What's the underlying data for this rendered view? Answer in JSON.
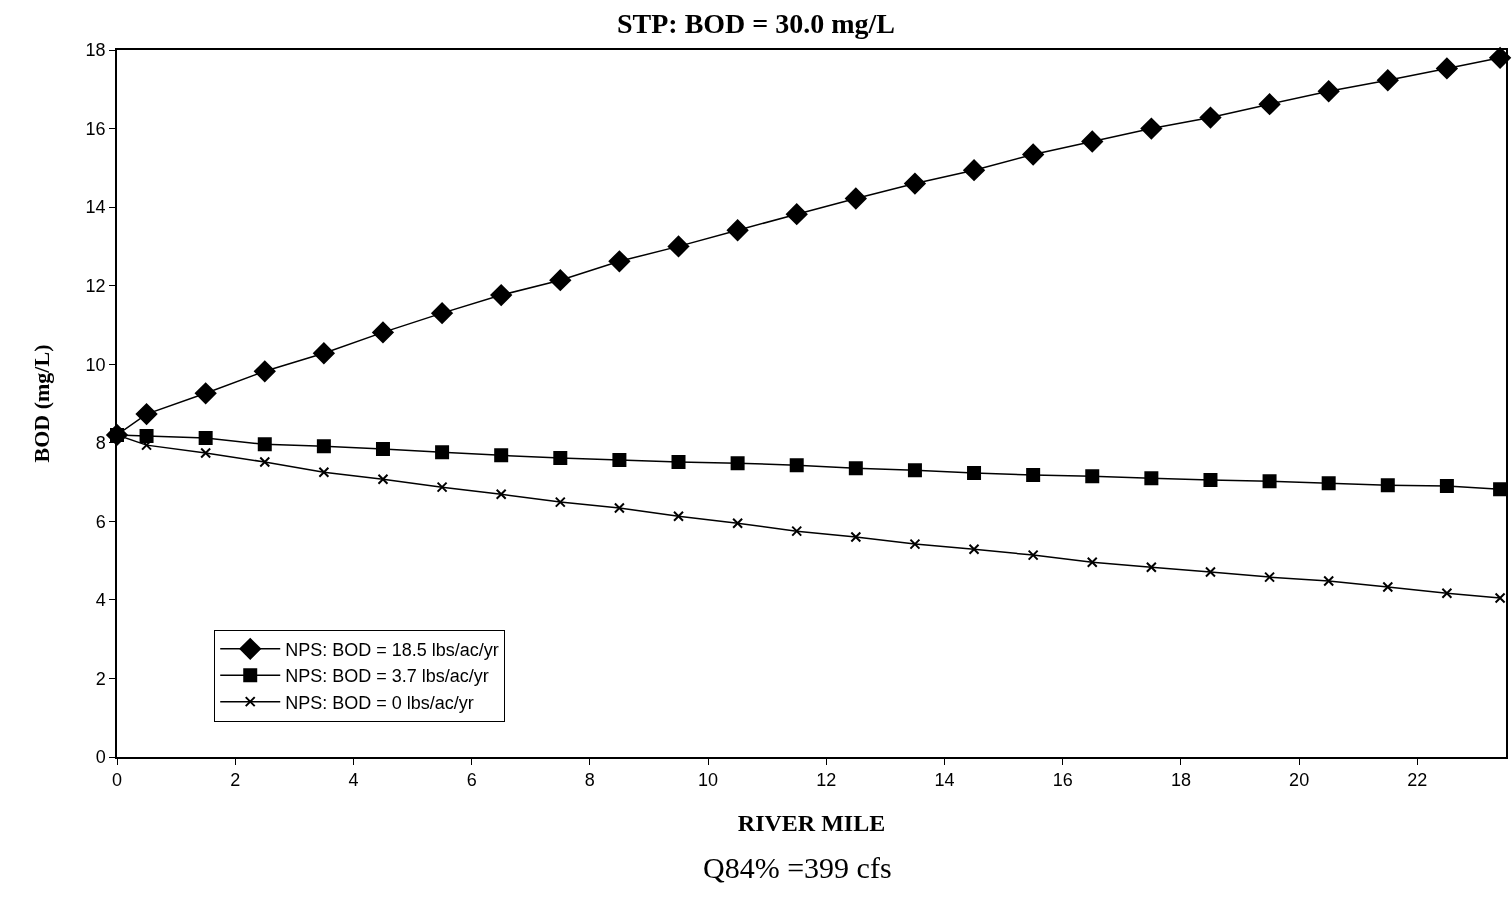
{
  "chart_data": {
    "type": "line",
    "title": "STP: BOD = 30.0 mg/L",
    "xlabel": "RIVER MILE",
    "ylabel": "BOD (mg/L)",
    "annotations": [
      "Q84% =399 cfs"
    ],
    "x": [
      0,
      0.5,
      1.5,
      2.5,
      3.5,
      4.5,
      5.5,
      6.5,
      7.5,
      8.5,
      9.5,
      10.5,
      11.5,
      12.5,
      13.5,
      14.5,
      15.5,
      16.5,
      17.5,
      18.5,
      19.5,
      20.5,
      21.5,
      22.5,
      23.4
    ],
    "series": [
      {
        "name": "NPS: BOD = 18.5 lbs/ac/yr",
        "color": "#000000",
        "marker": "diamond",
        "values": [
          8.2,
          8.73,
          9.26,
          9.82,
          10.28,
          10.81,
          11.3,
          11.76,
          12.14,
          12.62,
          13.0,
          13.41,
          13.82,
          14.22,
          14.6,
          14.94,
          15.34,
          15.67,
          16.0,
          16.28,
          16.62,
          16.95,
          17.23,
          17.53,
          17.8
        ]
      },
      {
        "name": "NPS: BOD = 3.7 lbs/ac/yr",
        "color": "#000000",
        "marker": "square",
        "values": [
          8.2,
          8.17,
          8.12,
          7.96,
          7.91,
          7.84,
          7.76,
          7.68,
          7.61,
          7.56,
          7.51,
          7.48,
          7.43,
          7.35,
          7.3,
          7.23,
          7.18,
          7.15,
          7.1,
          7.05,
          7.02,
          6.97,
          6.92,
          6.9,
          6.82
        ]
      },
      {
        "name": "NPS: BOD = 0 lbs/ac/yr",
        "color": "#000000",
        "marker": "cross",
        "values": [
          8.2,
          7.94,
          7.74,
          7.51,
          7.25,
          7.07,
          6.87,
          6.69,
          6.49,
          6.34,
          6.13,
          5.95,
          5.75,
          5.6,
          5.42,
          5.29,
          5.14,
          4.96,
          4.83,
          4.71,
          4.58,
          4.48,
          4.33,
          4.17,
          4.05
        ]
      }
    ],
    "xlim": [
      0,
      23.5
    ],
    "xticks": [
      0,
      2,
      4,
      6,
      8,
      10,
      12,
      14,
      16,
      18,
      20,
      22
    ],
    "ylim": [
      0,
      18
    ],
    "yticks": [
      0,
      2,
      4,
      6,
      8,
      10,
      12,
      14,
      16,
      18
    ],
    "grid": false,
    "legend": "bottom left",
    "line_style": "solid"
  }
}
